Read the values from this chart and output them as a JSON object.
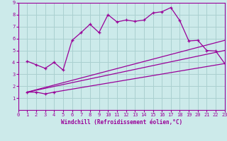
{
  "xlabel": "Windchill (Refroidissement éolien,°C)",
  "xlim": [
    0,
    23
  ],
  "ylim": [
    0,
    9
  ],
  "xticks": [
    0,
    1,
    2,
    3,
    4,
    5,
    6,
    7,
    8,
    9,
    10,
    11,
    12,
    13,
    14,
    15,
    16,
    17,
    18,
    19,
    20,
    21,
    22,
    23
  ],
  "yticks": [
    1,
    2,
    3,
    4,
    5,
    6,
    7,
    8,
    9
  ],
  "bg_color": "#cceaea",
  "line_color": "#990099",
  "grid_color": "#aad0d0",
  "main_line_x": [
    1,
    2,
    3,
    4,
    5,
    6,
    7,
    8,
    9,
    10,
    11,
    12,
    13,
    14,
    15,
    16,
    17,
    18,
    19,
    20,
    21,
    22,
    23
  ],
  "main_line_y": [
    4.1,
    3.8,
    3.5,
    4.0,
    3.35,
    5.85,
    6.5,
    7.2,
    6.5,
    8.0,
    7.4,
    7.55,
    7.45,
    7.55,
    8.15,
    8.25,
    8.6,
    7.5,
    5.8,
    5.85,
    5.0,
    4.95,
    3.9
  ],
  "bot_line_x": [
    1,
    2,
    3,
    4,
    23
  ],
  "bot_line_y": [
    1.5,
    1.5,
    1.35,
    1.5,
    3.9
  ],
  "mid_line_x": [
    1,
    23
  ],
  "mid_line_y": [
    1.5,
    5.0
  ],
  "top_line_x": [
    1,
    23
  ],
  "top_line_y": [
    1.5,
    5.85
  ]
}
